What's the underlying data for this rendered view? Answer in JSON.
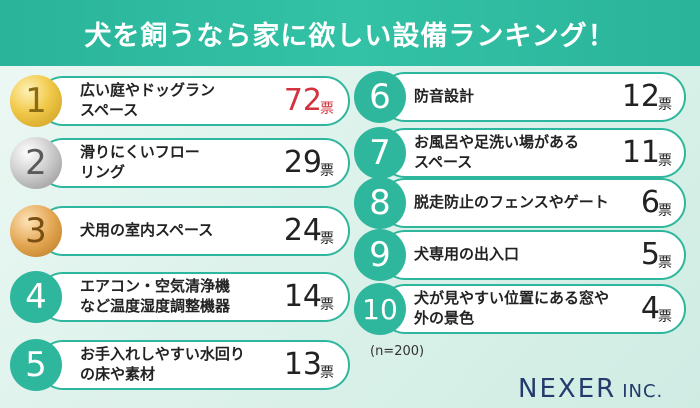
{
  "title": "犬を飼うなら家に欲しい設備ランキング！",
  "sample_note": "(n=200)",
  "logo": {
    "main": "NEXER",
    "suffix": "INC."
  },
  "unit": "票",
  "accent": "#2fb79d",
  "highlight": "#d2333d",
  "chart_data": {
    "type": "table",
    "columns": [
      "rank",
      "item",
      "votes"
    ],
    "rows": [
      {
        "rank": "1",
        "item": "広い庭やドッグランスペース",
        "line1": "広い庭やドッグラン",
        "line2": "スペース",
        "votes": 72
      },
      {
        "rank": "2",
        "item": "滑りにくいフローリング",
        "line1": "滑りにくいフロー",
        "line2": "リング",
        "votes": 29
      },
      {
        "rank": "3",
        "item": "犬用の室内スペース",
        "line1": "犬用の室内スペース",
        "line2": "",
        "votes": 24
      },
      {
        "rank": "4",
        "item": "エアコン・空気清浄機など温度湿度調整機器",
        "line1": "エアコン・空気清浄機",
        "line2": "など温度湿度調整機器",
        "votes": 14
      },
      {
        "rank": "5",
        "item": "お手入れしやすい水回りの床や素材",
        "line1": "お手入れしやすい水回り",
        "line2": "の床や素材",
        "votes": 13
      },
      {
        "rank": "6",
        "item": "防音設計",
        "line1": "防音設計",
        "line2": "",
        "votes": 12
      },
      {
        "rank": "7",
        "item": "お風呂や足洗い場があるスペース",
        "line1": "お風呂や足洗い場がある",
        "line2": "スペース",
        "votes": 11
      },
      {
        "rank": "8",
        "item": "脱走防止のフェンスやゲート",
        "line1": "脱走防止のフェンスやゲート",
        "line2": "",
        "votes": 6
      },
      {
        "rank": "9",
        "item": "犬専用の出入口",
        "line1": "犬専用の出入口",
        "line2": "",
        "votes": 5
      },
      {
        "rank": "10",
        "item": "犬が見やすい位置にある窓や外の景色",
        "line1": "犬が見やすい位置にある窓や",
        "line2": "外の景色",
        "votes": 4
      }
    ]
  }
}
